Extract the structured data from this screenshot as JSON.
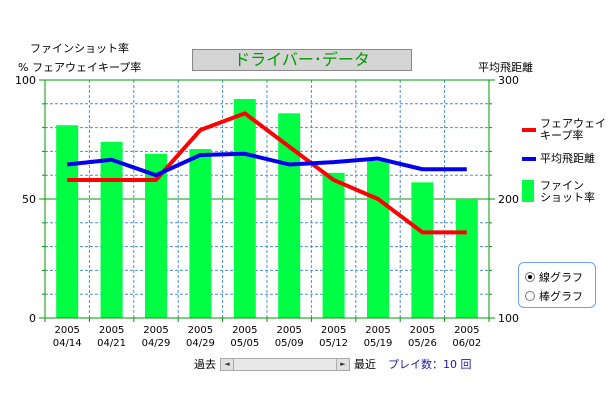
{
  "header": {
    "left_axis_title_line1": "ファインショット率",
    "left_axis_title_line2": "% フェアウェイキープ率",
    "title": "ドライバー･データ",
    "right_axis_title": "平均飛距離"
  },
  "legend": {
    "fairway": "フェアウェイ\nキープ率",
    "distance": "平均飛距離",
    "fine": "ファイン\nショット率"
  },
  "view_options": {
    "line_graph": "線グラフ",
    "bar_graph": "棒グラフ",
    "selected": "line_graph"
  },
  "footer": {
    "past_label": "過去",
    "recent_label": "最近",
    "play_count": "プレイ数：10 回",
    "left_arrow": "◄",
    "right_arrow": "►"
  },
  "colors": {
    "bar": "#00ff44",
    "fairway": "#ff0000",
    "distance": "#0000ee",
    "axis": "#009900",
    "grid": "#4a8fd6"
  },
  "chart_data": {
    "type": "bar",
    "title": "ドライバー･データ",
    "categories": [
      "2005\n04/14",
      "2005\n04/21",
      "2005\n04/29",
      "2005\n04/29",
      "2005\n05/05",
      "2005\n05/09",
      "2005\n05/12",
      "2005\n05/19",
      "2005\n05/26",
      "2005\n06/02"
    ],
    "ylabel": "% フェアウェイキープ率",
    "ylim": [
      0,
      100
    ],
    "yticks": [
      0,
      50,
      100
    ],
    "y2label": "平均飛距離",
    "y2lim": [
      100,
      300
    ],
    "y2ticks": [
      100,
      200,
      300
    ],
    "series": [
      {
        "name": "ファインショット率",
        "type": "bar",
        "axis": "left",
        "values": [
          81,
          74,
          69,
          71,
          92,
          86,
          61,
          66,
          57,
          50
        ]
      },
      {
        "name": "フェアウェイキープ率",
        "type": "line",
        "axis": "left",
        "values": [
          58,
          58,
          58,
          79,
          86,
          72,
          58,
          50,
          36,
          36
        ]
      },
      {
        "name": "平均飛距離",
        "type": "line",
        "axis": "right",
        "values": [
          229,
          233,
          220,
          237,
          238,
          229,
          231,
          234,
          225,
          225
        ]
      }
    ],
    "grid": true,
    "legend_position": "right"
  }
}
